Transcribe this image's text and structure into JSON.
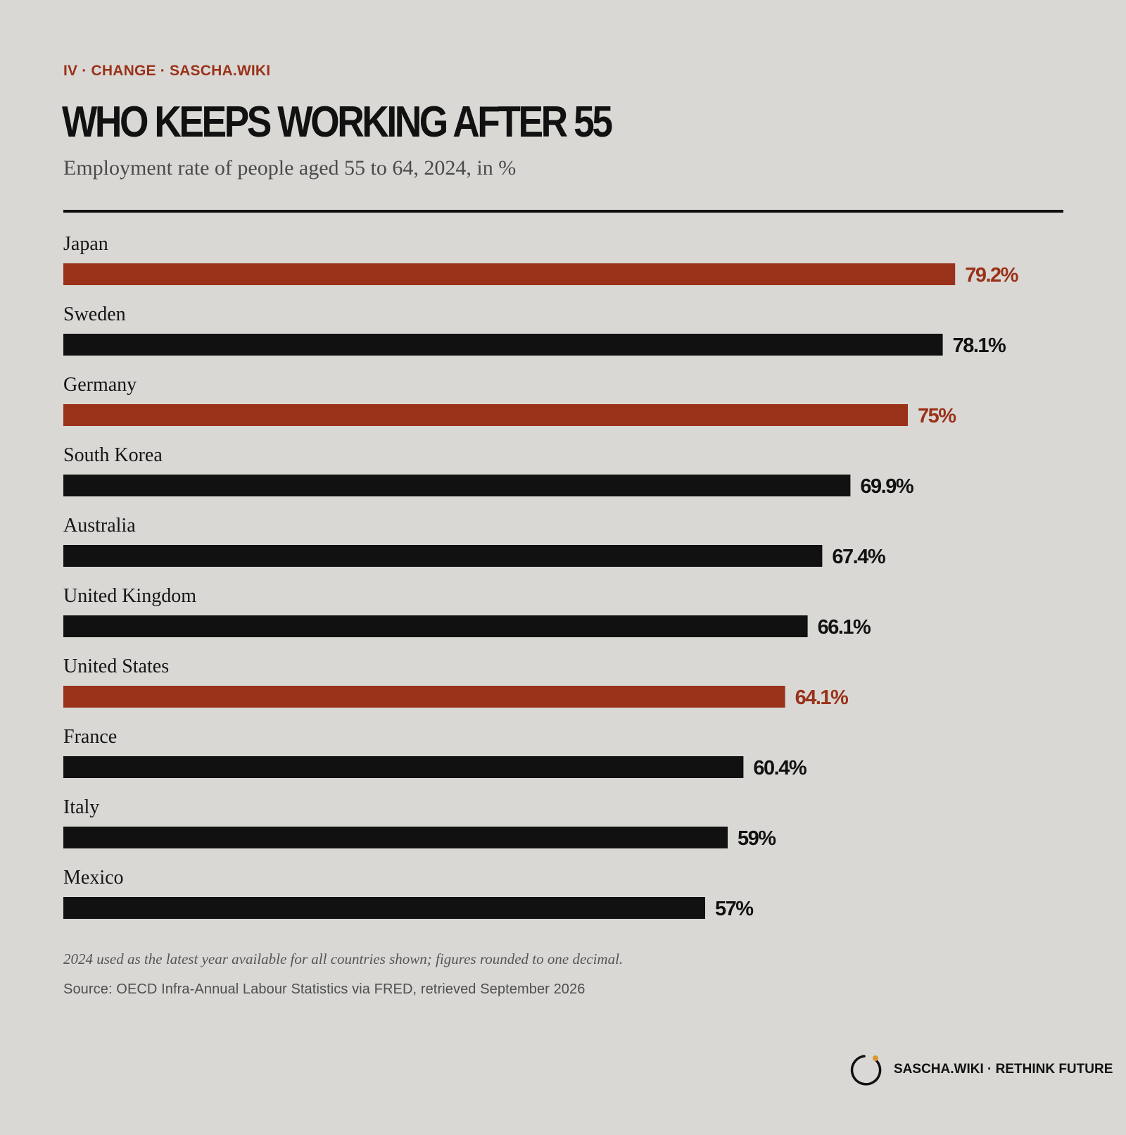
{
  "header": {
    "kicker": "IV · CHANGE · SASCHA.WIKI",
    "title": "WHO KEEPS WORKING AFTER 55",
    "subtitle": "Employment rate of people aged 55 to 64, 2024, in %"
  },
  "chart_data": {
    "type": "bar",
    "orientation": "horizontal",
    "title": "WHO KEEPS WORKING AFTER 55",
    "subtitle": "Employment rate of people aged 55 to 64, 2024, in %",
    "categories": [
      "Japan",
      "Sweden",
      "Germany",
      "South Korea",
      "Australia",
      "United Kingdom",
      "United States",
      "France",
      "Italy",
      "Mexico"
    ],
    "values": [
      79.2,
      78.1,
      75,
      69.9,
      67.4,
      66.1,
      64.1,
      60.4,
      59,
      57
    ],
    "value_labels": [
      "79.2%",
      "78.1%",
      "75%",
      "69.9%",
      "67.4%",
      "66.1%",
      "64.1%",
      "60.4%",
      "59%",
      "57%"
    ],
    "highlighted": [
      true,
      false,
      true,
      false,
      false,
      false,
      true,
      false,
      false,
      false
    ],
    "xlim": [
      0,
      100
    ],
    "grid": false,
    "legend": "none",
    "colors": {
      "highlight": "#9a3219",
      "default": "#111111"
    }
  },
  "notes": {
    "footnote": "2024 used as the latest year available for all countries shown; figures rounded to one decimal.",
    "source": "Source: OECD Infra-Annual Labour Statistics via FRED, retrieved September 2026"
  },
  "footer": {
    "brand": "SASCHA.WIKI · RETHINK FUTURE",
    "logo_icon": "circle-logo-icon",
    "accent_color": "#d9952f"
  }
}
